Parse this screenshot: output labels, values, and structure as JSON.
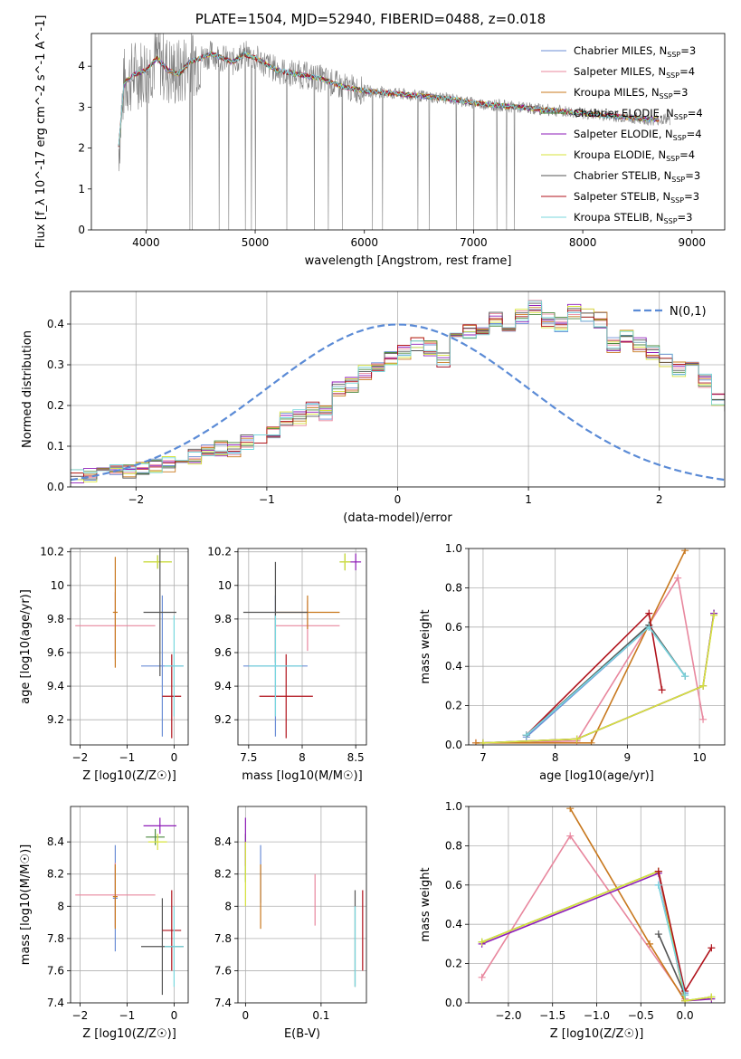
{
  "title": "PLATE=1504, MJD=52940, FIBERID=0488, z=0.018",
  "legend": {
    "entries": [
      {
        "label": "Chabrier MILES, N",
        "sub": "SSP",
        "tail": "=3",
        "color": "#6B8ED6"
      },
      {
        "label": "Salpeter MILES, N",
        "sub": "SSP",
        "tail": "=4",
        "color": "#E8879E"
      },
      {
        "label": "Kroupa MILES, N",
        "sub": "SSP",
        "tail": "=3",
        "color": "#C8781E"
      },
      {
        "label": "Chabrier ELODIE, N",
        "sub": "SSP",
        "tail": "=4",
        "color": "#4C8A3F"
      },
      {
        "label": "Salpeter ELODIE, N",
        "sub": "SSP",
        "tail": "=4",
        "color": "#8E1BB8"
      },
      {
        "label": "Kroupa ELODIE, N",
        "sub": "SSP",
        "tail": "=4",
        "color": "#D7E33B"
      },
      {
        "label": "Chabrier STELIB, N",
        "sub": "SSP",
        "tail": "=3",
        "color": "#555555"
      },
      {
        "label": "Salpeter STELIB, N",
        "sub": "SSP",
        "tail": "=3",
        "color": "#B0121B"
      },
      {
        "label": "Kroupa STELIB, N",
        "sub": "SSP",
        "tail": "=3",
        "color": "#79D7DE"
      }
    ]
  },
  "chart_data": [
    {
      "type": "line",
      "xlabel": "wavelength [Angstrom, rest frame]",
      "ylabel": "Flux [f_λ 10^-17 erg cm^-2 s^-1 A^-1]",
      "xlim": [
        3500,
        9300
      ],
      "ylim": [
        0,
        4.8
      ],
      "xticks": [
        4000,
        5000,
        6000,
        7000,
        8000,
        9000
      ],
      "yticks": [
        0,
        1,
        2,
        3,
        4
      ],
      "data_color": "#808080",
      "continuum_x": [
        3750,
        3800,
        3900,
        4000,
        4100,
        4200,
        4300,
        4400,
        4500,
        4600,
        4700,
        4800,
        4900,
        5000,
        5200,
        5400,
        5600,
        5800,
        6000,
        6200,
        6400,
        6600,
        6800,
        7000,
        7200,
        7400,
        7600,
        7800,
        8000,
        8200,
        8400,
        8600,
        8800
      ],
      "continuum_y": [
        2.0,
        3.6,
        3.8,
        3.9,
        4.2,
        3.9,
        3.8,
        4.1,
        4.2,
        4.3,
        4.2,
        4.1,
        4.3,
        4.2,
        3.9,
        3.8,
        3.7,
        3.5,
        3.4,
        3.35,
        3.3,
        3.25,
        3.2,
        3.1,
        3.05,
        3.0,
        2.95,
        2.9,
        2.85,
        2.8,
        2.75,
        2.7,
        2.7
      ],
      "ylabel_tex": "Flux"
    },
    {
      "type": "step",
      "xlabel": "(data-model)/error",
      "ylabel": "Normed distribution",
      "xlim": [
        -2.5,
        2.5
      ],
      "ylim": [
        0,
        0.48
      ],
      "xticks": [
        -2,
        -1,
        0,
        1,
        2
      ],
      "yticks": [
        0.0,
        0.1,
        0.2,
        0.3,
        0.4
      ],
      "bin_width": 0.1,
      "bin_start": -2.5,
      "values": [
        0.025,
        0.028,
        0.03,
        0.035,
        0.04,
        0.045,
        0.05,
        0.055,
        0.065,
        0.075,
        0.085,
        0.095,
        0.09,
        0.11,
        0.12,
        0.14,
        0.165,
        0.17,
        0.19,
        0.18,
        0.24,
        0.25,
        0.28,
        0.3,
        0.32,
        0.33,
        0.35,
        0.34,
        0.31,
        0.36,
        0.38,
        0.39,
        0.41,
        0.38,
        0.42,
        0.44,
        0.41,
        0.4,
        0.43,
        0.42,
        0.41,
        0.35,
        0.37,
        0.35,
        0.33,
        0.31,
        0.29,
        0.3,
        0.26,
        0.22,
        0.2,
        0.19,
        0.16,
        0.14,
        0.13,
        0.12,
        0.11,
        0.1,
        0.09,
        0.07,
        0.06,
        0.05,
        0.04,
        0.035,
        0.03,
        0.03,
        0.028,
        0.025,
        0.025,
        0.025
      ],
      "gaussian": {
        "label": "N(0,1)",
        "color": "#5B8BD6"
      }
    },
    {
      "type": "scatter-errorbar",
      "xlabel": "Z [log10(Z/Z☉)]",
      "ylabel": "age [log10(age/yr)]",
      "xlim": [
        -2.2,
        0.3
      ],
      "ylim": [
        9.05,
        10.22
      ],
      "xticks": [
        -2,
        -1,
        0
      ],
      "yticks": [
        9.2,
        9.4,
        9.6,
        9.8,
        10.0,
        10.2
      ],
      "points": [
        {
          "x": -0.25,
          "y": 9.52,
          "xerr": 0.45,
          "yerr": 0.42,
          "c": 0
        },
        {
          "x": -1.25,
          "y": 9.76,
          "xerr": 0.85,
          "yerr": 0.2,
          "c": 1
        },
        {
          "x": -1.25,
          "y": 9.84,
          "xerr": 0.05,
          "yerr": 0.33,
          "c": 2
        },
        {
          "x": -0.35,
          "y": 10.14,
          "xerr": 0.3,
          "yerr": 0.04,
          "c": 3
        },
        {
          "x": -0.35,
          "y": 10.14,
          "xerr": 0.3,
          "yerr": 0.04,
          "c": 5
        },
        {
          "x": -0.3,
          "y": 9.84,
          "xerr": 0.35,
          "yerr": 0.38,
          "c": 6
        },
        {
          "x": -0.05,
          "y": 9.34,
          "xerr": 0.2,
          "yerr": 0.25,
          "c": 7
        },
        {
          "x": 0.0,
          "y": 9.52,
          "xerr": 0.2,
          "yerr": 0.3,
          "c": 8
        }
      ]
    },
    {
      "type": "scatter-errorbar",
      "xlabel": "mass [log10(M/M☉)]",
      "ylabel": "",
      "xlim": [
        7.4,
        8.6
      ],
      "ylim": [
        9.05,
        10.22
      ],
      "xticks": [
        7.5,
        8.0,
        8.5
      ],
      "yticks": [
        9.2,
        9.4,
        9.6,
        9.8,
        10.0,
        10.2
      ],
      "points": [
        {
          "x": 7.75,
          "y": 9.52,
          "xerr": 0.3,
          "yerr": 0.42,
          "c": 0
        },
        {
          "x": 8.05,
          "y": 9.76,
          "xerr": 0.3,
          "yerr": 0.15,
          "c": 1
        },
        {
          "x": 8.05,
          "y": 9.84,
          "xerr": 0.3,
          "yerr": 0.1,
          "c": 2
        },
        {
          "x": 8.4,
          "y": 10.14,
          "xerr": 0.05,
          "yerr": 0.05,
          "c": 3
        },
        {
          "x": 8.5,
          "y": 10.14,
          "xerr": 0.05,
          "yerr": 0.05,
          "c": 4
        },
        {
          "x": 8.4,
          "y": 10.14,
          "xerr": 0.05,
          "yerr": 0.05,
          "c": 5
        },
        {
          "x": 7.75,
          "y": 9.84,
          "xerr": 0.3,
          "yerr": 0.3,
          "c": 6
        },
        {
          "x": 7.85,
          "y": 9.34,
          "xerr": 0.25,
          "yerr": 0.25,
          "c": 7
        },
        {
          "x": 7.75,
          "y": 9.52,
          "xerr": 0.25,
          "yerr": 0.3,
          "c": 8
        }
      ]
    },
    {
      "type": "line",
      "xlabel": "age [log10(age/yr)]",
      "ylabel": "mass weight",
      "xlim": [
        6.8,
        10.35
      ],
      "ylim": [
        0,
        1
      ],
      "xticks": [
        7,
        8,
        9,
        10
      ],
      "yticks": [
        0.0,
        0.2,
        0.4,
        0.6,
        0.8,
        1.0
      ],
      "series": [
        {
          "c": 0,
          "x": [
            7.6,
            9.3,
            9.8
          ],
          "y": [
            0.04,
            0.6,
            0.35
          ]
        },
        {
          "c": 1,
          "x": [
            6.9,
            8.3,
            9.7,
            10.05
          ],
          "y": [
            0.01,
            0.02,
            0.85,
            0.13
          ]
        },
        {
          "c": 2,
          "x": [
            6.9,
            8.5,
            9.8
          ],
          "y": [
            0.01,
            0.01,
            0.99
          ]
        },
        {
          "c": 3,
          "x": [
            7.0,
            8.3,
            10.05,
            10.2
          ],
          "y": [
            0.01,
            0.03,
            0.3,
            0.67
          ]
        },
        {
          "c": 4,
          "x": [
            7.0,
            8.3,
            10.05,
            10.2
          ],
          "y": [
            0.01,
            0.03,
            0.3,
            0.67
          ]
        },
        {
          "c": 5,
          "x": [
            7.0,
            8.3,
            10.05,
            10.2
          ],
          "y": [
            0.01,
            0.03,
            0.3,
            0.66
          ]
        },
        {
          "c": 6,
          "x": [
            7.6,
            9.3,
            9.8
          ],
          "y": [
            0.05,
            0.61,
            0.35
          ]
        },
        {
          "c": 7,
          "x": [
            7.6,
            9.3,
            9.48
          ],
          "y": [
            0.05,
            0.67,
            0.28
          ]
        },
        {
          "c": 8,
          "x": [
            7.6,
            9.3,
            9.8
          ],
          "y": [
            0.05,
            0.6,
            0.35
          ]
        }
      ]
    },
    {
      "type": "scatter-errorbar",
      "xlabel": "Z [log10(Z/Z☉)]",
      "ylabel": "mass [log10(M/M☉)]",
      "xlim": [
        -2.2,
        0.3
      ],
      "ylim": [
        7.4,
        8.62
      ],
      "xticks": [
        -2,
        -1,
        0
      ],
      "yticks": [
        7.4,
        7.6,
        7.8,
        8.0,
        8.2,
        8.4
      ],
      "points": [
        {
          "x": -1.25,
          "y": 8.05,
          "xerr": 0.05,
          "yerr": 0.33,
          "c": 0
        },
        {
          "x": -1.25,
          "y": 8.07,
          "xerr": 0.85,
          "yerr": 0.2,
          "c": 1
        },
        {
          "x": -1.25,
          "y": 8.06,
          "xerr": 0.05,
          "yerr": 0.2,
          "c": 2
        },
        {
          "x": -0.4,
          "y": 8.43,
          "xerr": 0.2,
          "yerr": 0.05,
          "c": 3
        },
        {
          "x": -0.3,
          "y": 8.5,
          "xerr": 0.35,
          "yerr": 0.05,
          "c": 4
        },
        {
          "x": -0.35,
          "y": 8.4,
          "xerr": 0.2,
          "yerr": 0.05,
          "c": 5
        },
        {
          "x": -0.25,
          "y": 7.75,
          "xerr": 0.45,
          "yerr": 0.3,
          "c": 6
        },
        {
          "x": -0.05,
          "y": 7.85,
          "xerr": 0.2,
          "yerr": 0.25,
          "c": 7
        },
        {
          "x": 0.0,
          "y": 7.75,
          "xerr": 0.2,
          "yerr": 0.25,
          "c": 8
        }
      ]
    },
    {
      "type": "scatter-errorbar",
      "xlabel": "E(B-V)",
      "ylabel": "",
      "xlim": [
        -0.01,
        0.16
      ],
      "ylim": [
        7.4,
        8.62
      ],
      "xticks": [
        0.0,
        0.1
      ],
      "yticks": [
        7.4,
        7.6,
        7.8,
        8.0,
        8.2,
        8.4
      ],
      "points": [
        {
          "x": 0.02,
          "y": 8.2,
          "xerr": 0.0,
          "yerr": 0.18,
          "c": 0
        },
        {
          "x": 0.092,
          "y": 8.04,
          "xerr": 0.0,
          "yerr": 0.16,
          "c": 1
        },
        {
          "x": 0.02,
          "y": 8.06,
          "xerr": 0.0,
          "yerr": 0.2,
          "c": 2
        },
        {
          "x": 0.0,
          "y": 8.3,
          "xerr": 0.0,
          "yerr": 0.15,
          "c": 3
        },
        {
          "x": 0.0,
          "y": 8.4,
          "xerr": 0.0,
          "yerr": 0.15,
          "c": 4
        },
        {
          "x": 0.0,
          "y": 8.2,
          "xerr": 0.0,
          "yerr": 0.2,
          "c": 5
        },
        {
          "x": 0.145,
          "y": 7.8,
          "xerr": 0.0,
          "yerr": 0.3,
          "c": 6
        },
        {
          "x": 0.155,
          "y": 7.85,
          "xerr": 0.0,
          "yerr": 0.25,
          "c": 7
        },
        {
          "x": 0.145,
          "y": 7.75,
          "xerr": 0.0,
          "yerr": 0.25,
          "c": 8
        }
      ]
    },
    {
      "type": "line",
      "xlabel": "Z [log10(Z/Z☉)]",
      "ylabel": "mass weight",
      "xlim": [
        -2.45,
        0.45
      ],
      "ylim": [
        0,
        1
      ],
      "xticks": [
        -2.0,
        -1.5,
        -1.0,
        -0.5,
        0.0
      ],
      "yticks": [
        0.0,
        0.2,
        0.4,
        0.6,
        0.8,
        1.0
      ],
      "series": [
        {
          "c": 0,
          "x": [
            -0.3,
            0.0
          ],
          "y": [
            0.6,
            0.05
          ]
        },
        {
          "c": 1,
          "x": [
            -2.3,
            -1.3,
            0.0
          ],
          "y": [
            0.13,
            0.85,
            0.02
          ]
        },
        {
          "c": 2,
          "x": [
            -1.3,
            -0.4,
            0.0
          ],
          "y": [
            0.99,
            0.3,
            0.01
          ]
        },
        {
          "c": 3,
          "x": [
            -2.3,
            -0.3,
            0.0,
            0.3
          ],
          "y": [
            0.31,
            0.67,
            0.01,
            0.03
          ]
        },
        {
          "c": 4,
          "x": [
            -2.3,
            -0.3,
            0.0,
            0.3
          ],
          "y": [
            0.3,
            0.66,
            0.01,
            0.02
          ]
        },
        {
          "c": 5,
          "x": [
            -2.3,
            -0.3,
            0.0,
            0.3
          ],
          "y": [
            0.31,
            0.67,
            0.01,
            0.03
          ]
        },
        {
          "c": 6,
          "x": [
            -0.3,
            0.0
          ],
          "y": [
            0.35,
            0.04
          ]
        },
        {
          "c": 7,
          "x": [
            -0.3,
            0.0,
            0.3
          ],
          "y": [
            0.67,
            0.06,
            0.28
          ]
        },
        {
          "c": 8,
          "x": [
            -0.3,
            0.0
          ],
          "y": [
            0.6,
            0.04
          ]
        }
      ]
    }
  ]
}
